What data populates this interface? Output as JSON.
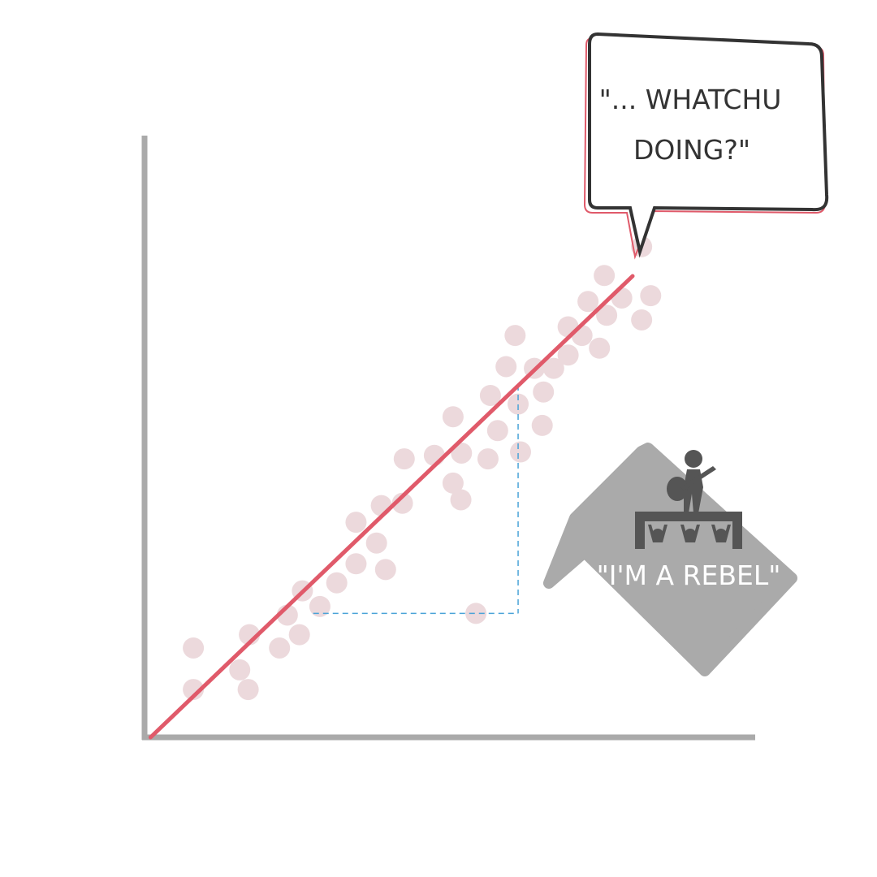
{
  "chart_data": {
    "type": "scatter",
    "title": "",
    "xlabel": "",
    "ylabel": "",
    "xlim": [
      0,
      100
    ],
    "ylim": [
      0,
      100
    ],
    "grid": false,
    "legend": "none",
    "colors": {
      "axis": "#aaaaaa",
      "points": "#ecd9dc",
      "trend": "#e05a6a",
      "guide": "#4aa3d8",
      "callout_gray": "#aaaaaa",
      "bubble_outline": "#333333",
      "bubble_accent": "#e05a6a"
    },
    "points": [
      {
        "x": 8.1,
        "y": 15.5
      },
      {
        "x": 8.1,
        "y": 8.3
      },
      {
        "x": 15.8,
        "y": 11.7
      },
      {
        "x": 17.2,
        "y": 8.3
      },
      {
        "x": 17.4,
        "y": 17.8
      },
      {
        "x": 22.4,
        "y": 15.5
      },
      {
        "x": 23.7,
        "y": 21.2
      },
      {
        "x": 25.7,
        "y": 17.8
      },
      {
        "x": 26.2,
        "y": 25.4
      },
      {
        "x": 29.1,
        "y": 22.7
      },
      {
        "x": 31.9,
        "y": 26.8
      },
      {
        "x": 35.1,
        "y": 30.1
      },
      {
        "x": 35.1,
        "y": 37.3
      },
      {
        "x": 38.5,
        "y": 33.7
      },
      {
        "x": 40.0,
        "y": 29.1
      },
      {
        "x": 39.3,
        "y": 40.2
      },
      {
        "x": 42.8,
        "y": 40.6
      },
      {
        "x": 43.1,
        "y": 48.3
      },
      {
        "x": 48.1,
        "y": 48.9
      },
      {
        "x": 51.2,
        "y": 55.6
      },
      {
        "x": 51.2,
        "y": 44.1
      },
      {
        "x": 52.5,
        "y": 41.2
      },
      {
        "x": 52.6,
        "y": 49.3
      },
      {
        "x": 57.0,
        "y": 48.3
      },
      {
        "x": 57.4,
        "y": 59.3
      },
      {
        "x": 58.6,
        "y": 53.2
      },
      {
        "x": 60.0,
        "y": 64.3
      },
      {
        "x": 61.5,
        "y": 69.7
      },
      {
        "x": 62.0,
        "y": 57.8
      },
      {
        "x": 62.4,
        "y": 49.5
      },
      {
        "x": 64.7,
        "y": 64.0
      },
      {
        "x": 66.0,
        "y": 54.1
      },
      {
        "x": 66.2,
        "y": 59.9
      },
      {
        "x": 67.9,
        "y": 64.0
      },
      {
        "x": 70.3,
        "y": 66.3
      },
      {
        "x": 70.3,
        "y": 71.2
      },
      {
        "x": 72.6,
        "y": 69.7
      },
      {
        "x": 73.6,
        "y": 75.6
      },
      {
        "x": 75.5,
        "y": 67.5
      },
      {
        "x": 76.7,
        "y": 73.2
      },
      {
        "x": 76.3,
        "y": 80.1
      },
      {
        "x": 79.2,
        "y": 76.2
      },
      {
        "x": 82.5,
        "y": 72.4
      },
      {
        "x": 82.5,
        "y": 85.1
      },
      {
        "x": 84.0,
        "y": 76.6
      },
      {
        "x": 55.0,
        "y": 21.5
      }
    ],
    "outlier": {
      "x": 55.0,
      "y": 21.5
    },
    "trendline": {
      "from": {
        "x": 1.0,
        "y": 0.0
      },
      "to": {
        "x": 81.0,
        "y": 80.0
      }
    },
    "guide": {
      "line_y": 21.5,
      "x_from": 28.0,
      "x_to": 62.0
    }
  },
  "annotations": {
    "top_bubble": {
      "line1": "\"... WHATCHU",
      "line2": "DOING?\""
    },
    "rebel": {
      "label": "\"I'M A REBEL\"",
      "icon": "rock-concert-icon"
    }
  }
}
